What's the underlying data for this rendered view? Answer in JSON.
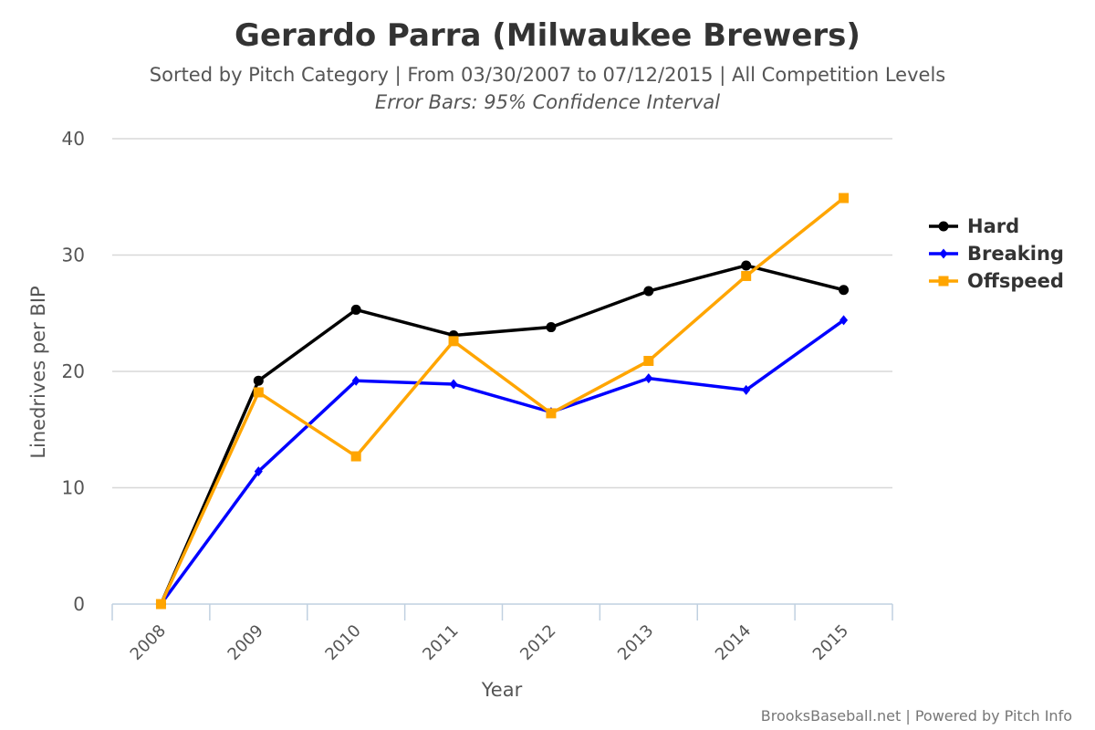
{
  "chart_data": {
    "type": "line",
    "title": "Gerardo Parra (Milwaukee Brewers)",
    "subtitle": "Sorted by Pitch Category | From 03/30/2007 to 07/12/2015 | All Competition Levels",
    "subtitle2": "Error Bars: 95% Confidence Interval",
    "xlabel": "Year",
    "ylabel": "Linedrives per BIP",
    "categories": [
      "2008",
      "2009",
      "2010",
      "2011",
      "2012",
      "2013",
      "2014",
      "2015"
    ],
    "y_ticks": [
      "0",
      "10",
      "20",
      "30",
      "40"
    ],
    "ylim": [
      0,
      40
    ],
    "grid": true,
    "legend_position": "right",
    "series": [
      {
        "name": "Hard",
        "color": "#000000",
        "marker": "circle",
        "values": [
          0,
          19.2,
          25.3,
          23.1,
          23.8,
          26.9,
          29.1,
          27.0
        ]
      },
      {
        "name": "Breaking",
        "color": "#0000ff",
        "marker": "diamond",
        "values": [
          0,
          11.4,
          19.2,
          18.9,
          16.5,
          19.4,
          18.4,
          24.4
        ]
      },
      {
        "name": "Offspeed",
        "color": "#ffa500",
        "marker": "square",
        "values": [
          0,
          18.2,
          12.7,
          22.6,
          16.4,
          20.9,
          28.2,
          34.9
        ]
      }
    ],
    "credits": "BrooksBaseball.net | Powered by Pitch Info"
  }
}
